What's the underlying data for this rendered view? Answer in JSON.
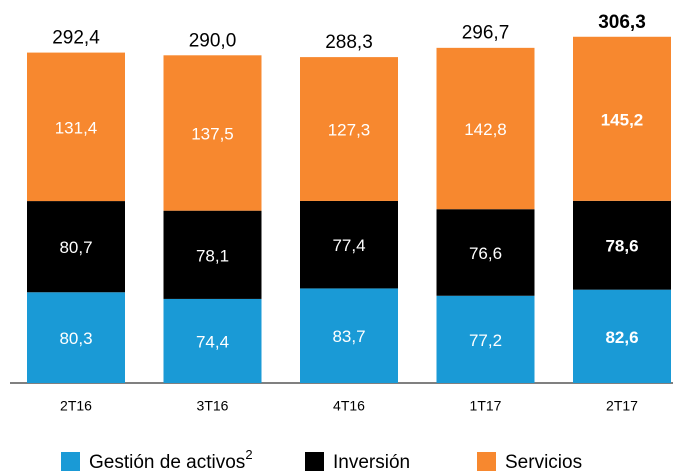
{
  "chart_data": {
    "type": "stacked_bar",
    "categories": [
      "2T16",
      "3T16",
      "4T16",
      "1T17",
      "2T17"
    ],
    "series": [
      {
        "name": "Gestión de activos",
        "name_sup": "2",
        "color": "#1a9ad6",
        "values": [
          80.3,
          74.4,
          83.7,
          77.2,
          82.6
        ],
        "value_labels": [
          "80,3",
          "74,4",
          "83,7",
          "77,2",
          "82,6"
        ]
      },
      {
        "name": "Inversión",
        "color": "#000000",
        "values": [
          80.7,
          78.1,
          77.4,
          76.6,
          78.6
        ],
        "value_labels": [
          "80,7",
          "78,1",
          "77,4",
          "76,6",
          "78,6"
        ]
      },
      {
        "name": "Servicios",
        "color": "#f7882f",
        "values": [
          131.4,
          137.5,
          127.3,
          142.8,
          145.2
        ],
        "value_labels": [
          "131,4",
          "137,5",
          "127,3",
          "142,8",
          "145,2"
        ]
      }
    ],
    "totals": [
      292.4,
      290.0,
      288.3,
      296.7,
      306.3
    ],
    "total_labels": [
      "292,4",
      "290,0",
      "288,3",
      "296,7",
      "306,3"
    ],
    "highlight_index": 4,
    "legend": "bottom"
  }
}
